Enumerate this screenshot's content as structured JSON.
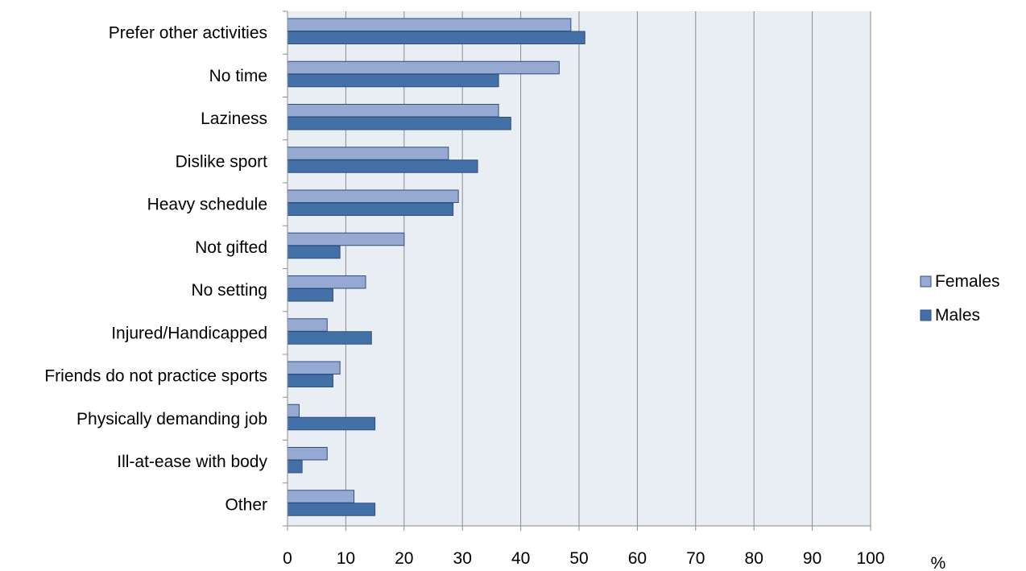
{
  "chart_data": {
    "type": "bar",
    "orientation": "horizontal",
    "categories": [
      "Prefer other activities",
      "No time",
      "Laziness",
      "Dislike sport",
      "Heavy schedule",
      "Not gifted",
      "No setting",
      "Injured/Handicapped",
      "Friends do not practice sports",
      "Physically demanding job",
      "Ill-at-ease with body",
      "Other"
    ],
    "series": [
      {
        "name": "Females",
        "color": "#95A9D2",
        "values": [
          48.6,
          46.6,
          36.2,
          27.6,
          29.3,
          20,
          13.4,
          6.8,
          9,
          2,
          6.8,
          11.4
        ]
      },
      {
        "name": "Males",
        "color": "#4470A8",
        "values": [
          51,
          36.2,
          38.3,
          32.6,
          28.4,
          9,
          7.8,
          14.4,
          7.8,
          15,
          2.5,
          15
        ]
      }
    ],
    "x_ticks": [
      "0",
      "10",
      "20",
      "30",
      "40",
      "50",
      "60",
      "70",
      "80",
      "90",
      "100"
    ],
    "x_unit_label": "%",
    "xlim": [
      0,
      100
    ],
    "grid": "vertical",
    "legend_position": "right",
    "plot_background": "#E9EDF4"
  }
}
